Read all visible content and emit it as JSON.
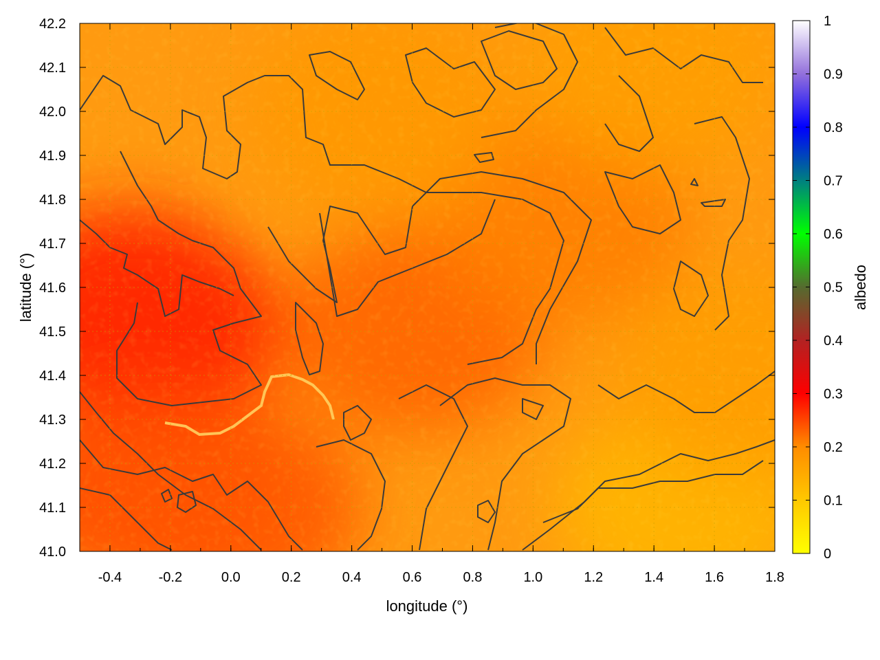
{
  "chart_data": {
    "type": "heatmap",
    "title": "",
    "xlabel": "longitude (°)",
    "ylabel": "latitude (°)",
    "colorbar_label": "albedo",
    "xlim": [
      -0.5,
      1.8
    ],
    "ylim": [
      41.0,
      42.2
    ],
    "x_ticks": [
      "-0.4",
      "-0.2",
      "0.0",
      "0.2",
      "0.4",
      "0.6",
      "0.8",
      "1.0",
      "1.2",
      "1.4",
      "1.6",
      "1.8"
    ],
    "y_ticks": [
      "41.0",
      "41.1",
      "41.2",
      "41.3",
      "41.4",
      "41.5",
      "41.6",
      "41.7",
      "41.8",
      "41.9",
      "42.0",
      "42.1",
      "42.2"
    ],
    "colorbar_range": [
      0,
      1
    ],
    "colorbar_ticks": [
      "0",
      "0.1",
      "0.2",
      "0.3",
      "0.4",
      "0.5",
      "0.6",
      "0.7",
      "0.8",
      "0.9",
      "1"
    ],
    "grid": true,
    "colormap_stops": [
      {
        "value": 0.0,
        "color": "#ffff00"
      },
      {
        "value": 0.1,
        "color": "#ffc800"
      },
      {
        "value": 0.2,
        "color": "#ff8c00"
      },
      {
        "value": 0.3,
        "color": "#ff0000"
      },
      {
        "value": 0.4,
        "color": "#b22222"
      },
      {
        "value": 0.5,
        "color": "#556b2f"
      },
      {
        "value": 0.6,
        "color": "#00ff00"
      },
      {
        "value": 0.7,
        "color": "#008080"
      },
      {
        "value": 0.8,
        "color": "#0000ff"
      },
      {
        "value": 0.9,
        "color": "#9370db"
      },
      {
        "value": 1.0,
        "color": "#ffffff"
      }
    ],
    "albedo_regions": [
      {
        "lon": -0.35,
        "lat": 41.55,
        "albedo": 0.28
      },
      {
        "lon": -0.25,
        "lat": 41.5,
        "albedo": 0.27
      },
      {
        "lon": -0.3,
        "lat": 41.15,
        "albedo": 0.25
      },
      {
        "lon": 0.0,
        "lat": 41.1,
        "albedo": 0.24
      },
      {
        "lon": 0.6,
        "lat": 41.5,
        "albedo": 0.23
      },
      {
        "lon": 1.1,
        "lat": 41.75,
        "albedo": 0.21
      },
      {
        "lon": 0.5,
        "lat": 42.0,
        "albedo": 0.18
      },
      {
        "lon": 1.5,
        "lat": 41.1,
        "albedo": 0.13
      },
      {
        "lon": 1.7,
        "lat": 41.4,
        "albedo": 0.17
      },
      {
        "lon": 1.4,
        "lat": 42.1,
        "albedo": 0.17
      }
    ]
  }
}
